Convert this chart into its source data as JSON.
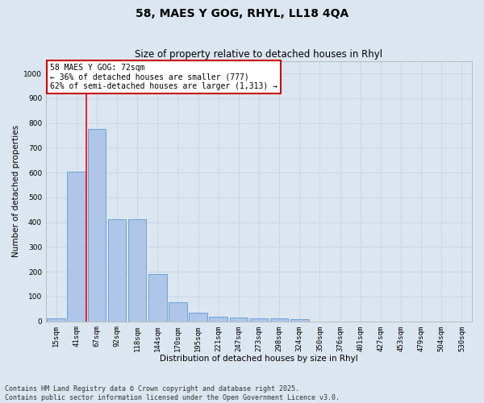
{
  "title_line1": "58, MAES Y GOG, RHYL, LL18 4QA",
  "title_line2": "Size of property relative to detached houses in Rhyl",
  "xlabel": "Distribution of detached houses by size in Rhyl",
  "ylabel": "Number of detached properties",
  "categories": [
    "15sqm",
    "41sqm",
    "67sqm",
    "92sqm",
    "118sqm",
    "144sqm",
    "170sqm",
    "195sqm",
    "221sqm",
    "247sqm",
    "273sqm",
    "298sqm",
    "324sqm",
    "350sqm",
    "376sqm",
    "401sqm",
    "427sqm",
    "453sqm",
    "479sqm",
    "504sqm",
    "530sqm"
  ],
  "values": [
    13,
    605,
    775,
    413,
    413,
    190,
    78,
    35,
    20,
    15,
    13,
    13,
    8,
    0,
    0,
    0,
    0,
    0,
    0,
    0,
    0
  ],
  "bar_color": "#aec6e8",
  "bar_edge_color": "#5b9bd5",
  "red_line_index": 2,
  "annotation_text": "58 MAES Y GOG: 72sqm\n← 36% of detached houses are smaller (777)\n62% of semi-detached houses are larger (1,313) →",
  "annotation_box_color": "#ffffff",
  "annotation_box_edge": "#cc0000",
  "ylim_max": 1050,
  "yticks": [
    0,
    100,
    200,
    300,
    400,
    500,
    600,
    700,
    800,
    900,
    1000
  ],
  "grid_color": "#c8d4e0",
  "bg_color": "#dce6f0",
  "fig_bg_color": "#dce6f0",
  "footer_line1": "Contains HM Land Registry data © Crown copyright and database right 2025.",
  "footer_line2": "Contains public sector information licensed under the Open Government Licence v3.0.",
  "title_fontsize": 10,
  "subtitle_fontsize": 8.5,
  "axis_label_fontsize": 7.5,
  "tick_fontsize": 6.5,
  "footer_fontsize": 6,
  "annotation_fontsize": 7
}
